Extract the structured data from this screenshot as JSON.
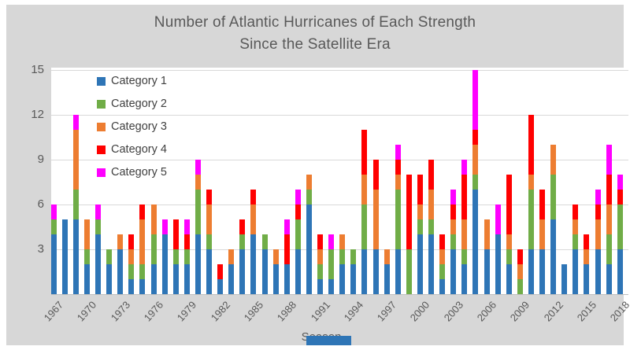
{
  "title": {
    "line1": "Number of Atlantic Hurricanes of Each Strength",
    "line2": "Since the Satellite Era",
    "color": "#595959"
  },
  "axes": {
    "xlabel": "Season",
    "ytick_labels": [
      "3",
      "6",
      "9",
      "12",
      "15"
    ],
    "xtick_labels": [
      "1967",
      "1970",
      "1973",
      "1976",
      "1979",
      "1982",
      "1985",
      "1988",
      "1991",
      "1994",
      "1997",
      "2000",
      "2003",
      "2006",
      "2009",
      "2012",
      "2015",
      "2018"
    ]
  },
  "legend": {
    "items": [
      {
        "label": "Category 1",
        "color": "#2E75B6"
      },
      {
        "label": "Category 2",
        "color": "#70AD47"
      },
      {
        "label": "Category 3",
        "color": "#ED7D31"
      },
      {
        "label": "Category 4",
        "color": "#FF0000"
      },
      {
        "label": "Category 5",
        "color": "#FF00FF"
      }
    ]
  },
  "colors": {
    "card_background": "#D7D7D7",
    "plot_background": "#FFFFFF",
    "gridline": "#D9D9D9",
    "text": "#595959",
    "bottom_bar": "#2E75B6"
  },
  "chart_data": {
    "type": "bar",
    "stacked": true,
    "title": "Number of Atlantic Hurricanes of Each Strength Since the Satellite Era",
    "xlabel": "Season",
    "ylabel": "",
    "ylim": [
      0,
      15
    ],
    "yticks": [
      3,
      6,
      9,
      12,
      15
    ],
    "grid": true,
    "legend_position": "top-left inside plot",
    "x": [
      1967,
      1968,
      1969,
      1970,
      1971,
      1972,
      1973,
      1974,
      1975,
      1976,
      1977,
      1978,
      1979,
      1980,
      1981,
      1982,
      1983,
      1984,
      1985,
      1986,
      1987,
      1988,
      1989,
      1990,
      1991,
      1992,
      1993,
      1994,
      1995,
      1996,
      1997,
      1998,
      1999,
      2000,
      2001,
      2002,
      2003,
      2004,
      2005,
      2006,
      2007,
      2008,
      2009,
      2010,
      2011,
      2012,
      2013,
      2014,
      2015,
      2016,
      2017,
      2018
    ],
    "xtick_step": 3,
    "series": [
      {
        "name": "Category 1",
        "color": "#2E75B6",
        "values": [
          4,
          5,
          5,
          2,
          4,
          2,
          3,
          1,
          1,
          2,
          4,
          2,
          2,
          4,
          3,
          1,
          2,
          3,
          4,
          3,
          2,
          2,
          3,
          6,
          1,
          1,
          2,
          2,
          3,
          3,
          2,
          3,
          0,
          4,
          4,
          1,
          3,
          2,
          7,
          3,
          4,
          2,
          0,
          3,
          3,
          5,
          2,
          3,
          2,
          3,
          2,
          3
        ]
      },
      {
        "name": "Category 2",
        "color": "#70AD47",
        "values": [
          1,
          0,
          2,
          1,
          1,
          1,
          0,
          1,
          1,
          2,
          0,
          1,
          1,
          3,
          1,
          0,
          0,
          1,
          0,
          1,
          0,
          0,
          2,
          1,
          1,
          2,
          1,
          1,
          3,
          0,
          0,
          4,
          3,
          1,
          1,
          1,
          1,
          1,
          1,
          0,
          0,
          1,
          1,
          4,
          0,
          3,
          0,
          1,
          0,
          0,
          2,
          3
        ]
      },
      {
        "name": "Category 3",
        "color": "#ED7D31",
        "values": [
          0,
          0,
          4,
          2,
          0,
          0,
          1,
          1,
          3,
          2,
          0,
          0,
          0,
          1,
          2,
          0,
          1,
          0,
          2,
          0,
          1,
          0,
          0,
          1,
          1,
          0,
          1,
          0,
          2,
          4,
          1,
          1,
          0,
          1,
          2,
          1,
          1,
          2,
          2,
          2,
          0,
          1,
          1,
          1,
          2,
          2,
          0,
          1,
          1,
          2,
          2,
          0
        ]
      },
      {
        "name": "Category 4",
        "color": "#FF0000",
        "values": [
          0,
          0,
          0,
          0,
          0,
          0,
          0,
          1,
          1,
          0,
          0,
          2,
          1,
          0,
          1,
          1,
          0,
          1,
          1,
          0,
          0,
          2,
          1,
          0,
          1,
          0,
          0,
          0,
          3,
          2,
          0,
          1,
          5,
          2,
          2,
          1,
          1,
          3,
          1,
          0,
          0,
          4,
          1,
          4,
          2,
          0,
          0,
          1,
          1,
          1,
          2,
          1
        ]
      },
      {
        "name": "Category 5",
        "color": "#FF00FF",
        "values": [
          1,
          0,
          1,
          0,
          1,
          0,
          0,
          0,
          0,
          0,
          1,
          0,
          1,
          1,
          0,
          0,
          0,
          0,
          0,
          0,
          0,
          1,
          1,
          0,
          0,
          1,
          0,
          0,
          0,
          0,
          0,
          1,
          0,
          0,
          0,
          0,
          1,
          1,
          4,
          0,
          2,
          0,
          0,
          0,
          0,
          0,
          0,
          0,
          0,
          1,
          2,
          1
        ]
      }
    ]
  }
}
